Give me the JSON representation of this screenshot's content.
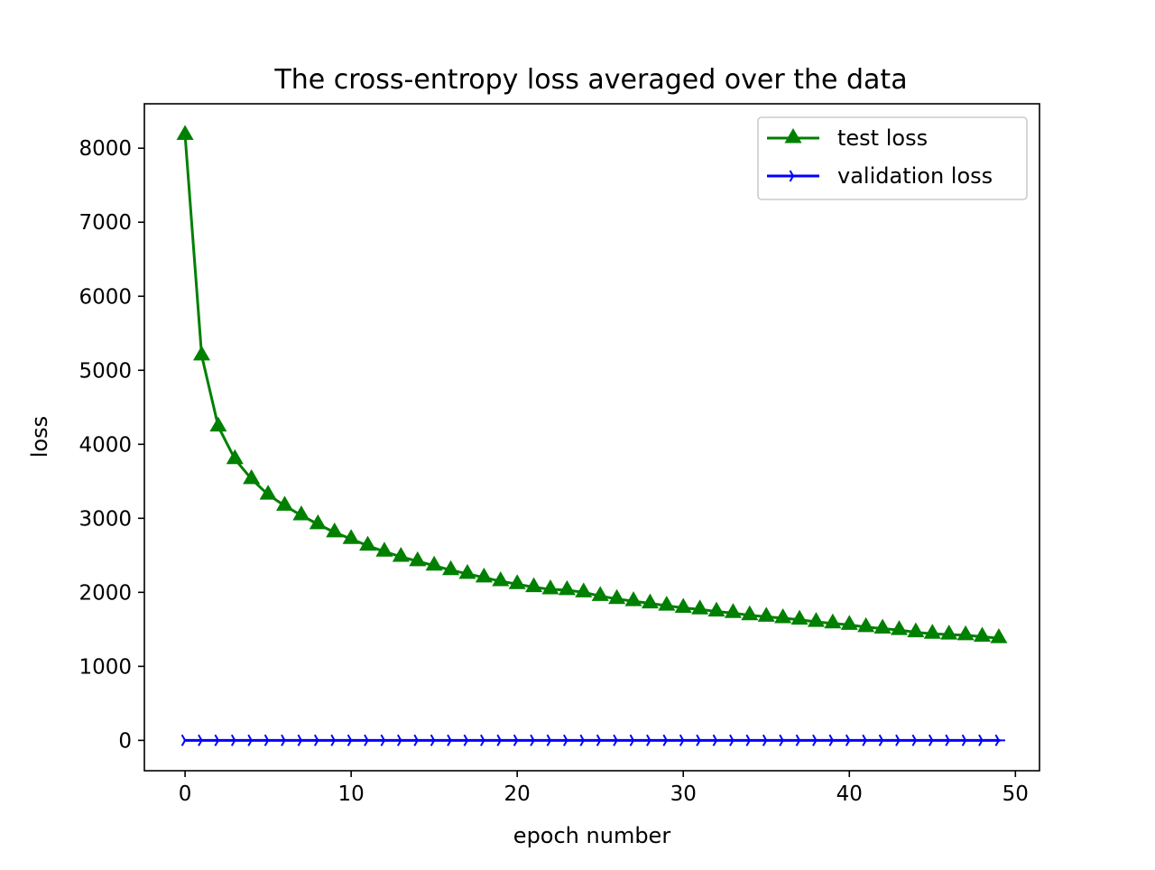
{
  "chart_data": {
    "type": "line",
    "title": "The cross-entropy loss averaged over the data",
    "xlabel": "epoch number",
    "ylabel": "loss",
    "xlim": [
      -2.45,
      51.45
    ],
    "ylim": [
      -410,
      8600
    ],
    "xticks": [
      0,
      10,
      20,
      30,
      40,
      50
    ],
    "xtick_labels": [
      "0",
      "10",
      "20",
      "30",
      "40",
      "50"
    ],
    "yticks": [
      0,
      1000,
      2000,
      3000,
      4000,
      5000,
      6000,
      7000,
      8000
    ],
    "ytick_labels": [
      "0",
      "1000",
      "2000",
      "3000",
      "4000",
      "5000",
      "6000",
      "7000",
      "8000"
    ],
    "grid": false,
    "legend_position": "top-right",
    "x": [
      0,
      1,
      2,
      3,
      4,
      5,
      6,
      7,
      8,
      9,
      10,
      11,
      12,
      13,
      14,
      15,
      16,
      17,
      18,
      19,
      20,
      21,
      22,
      23,
      24,
      25,
      26,
      27,
      28,
      29,
      30,
      31,
      32,
      33,
      34,
      35,
      36,
      37,
      38,
      39,
      40,
      41,
      42,
      43,
      44,
      45,
      46,
      47,
      48,
      49
    ],
    "series": [
      {
        "name": "test loss",
        "color": "#008000",
        "marker": "triangle-up",
        "values": [
          8180,
          5200,
          4240,
          3800,
          3530,
          3320,
          3170,
          3040,
          2920,
          2810,
          2720,
          2630,
          2550,
          2480,
          2420,
          2360,
          2300,
          2250,
          2200,
          2150,
          2110,
          2070,
          2040,
          2030,
          2000,
          1950,
          1910,
          1880,
          1850,
          1820,
          1790,
          1770,
          1740,
          1720,
          1690,
          1670,
          1650,
          1630,
          1600,
          1580,
          1560,
          1530,
          1510,
          1490,
          1460,
          1440,
          1430,
          1420,
          1400,
          1380
        ]
      },
      {
        "name": "validation loss",
        "color": "#0000ff",
        "marker": "tri-right",
        "values": [
          0,
          0,
          0,
          0,
          0,
          0,
          0,
          0,
          0,
          0,
          0,
          0,
          0,
          0,
          0,
          0,
          0,
          0,
          0,
          0,
          0,
          0,
          0,
          0,
          0,
          0,
          0,
          0,
          0,
          0,
          0,
          0,
          0,
          0,
          0,
          0,
          0,
          0,
          0,
          0,
          0,
          0,
          0,
          0,
          0,
          0,
          0,
          0,
          0,
          0
        ]
      }
    ]
  }
}
